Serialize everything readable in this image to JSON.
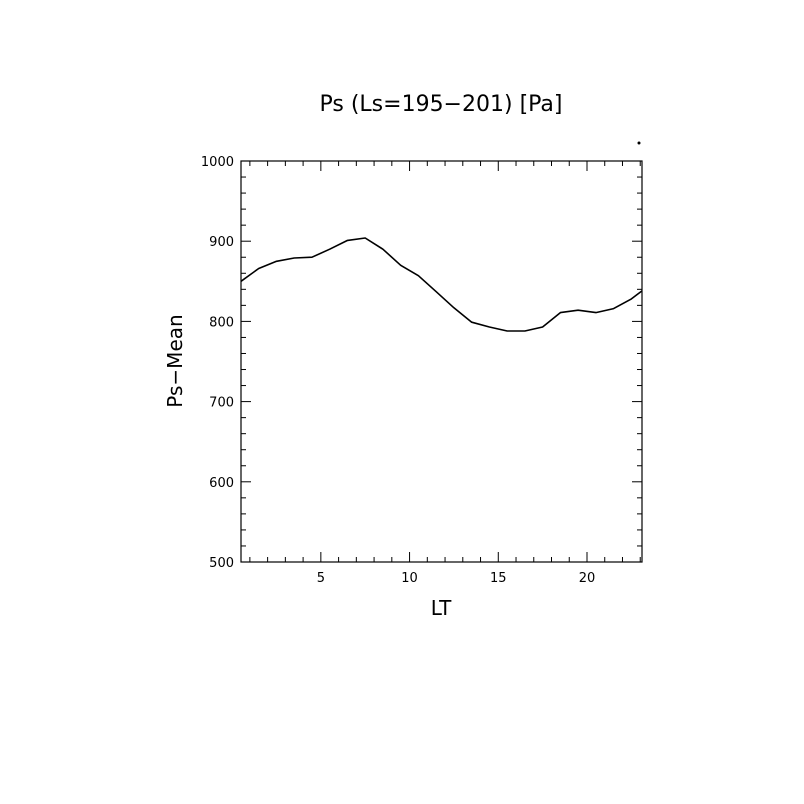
{
  "chart_data": {
    "type": "line",
    "title": "Ps (Ls=195−201) [Pa]",
    "xlabel": "LT",
    "ylabel": "Ps−Mean",
    "xlim": [
      0.5,
      23.1
    ],
    "ylim": [
      500,
      1000
    ],
    "xticks": [
      5,
      10,
      15,
      20
    ],
    "yticks": [
      500,
      600,
      700,
      800,
      900,
      1000
    ],
    "grid": false,
    "legend": "none",
    "series": [
      {
        "color": "#000000",
        "x": [
          0.5,
          1.5,
          2.5,
          3.5,
          4.5,
          5.5,
          6.5,
          7.5,
          8.5,
          9.5,
          10.5,
          11.5,
          12.5,
          13.5,
          14.5,
          15.5,
          16.5,
          17.5,
          18.5,
          19.5,
          20.5,
          21.5,
          22.5,
          23.1
        ],
        "y": [
          850,
          866,
          875,
          879,
          880,
          890,
          901,
          904,
          890,
          870,
          857,
          837,
          817,
          799,
          793,
          788,
          788,
          793,
          811,
          814,
          811,
          816,
          828,
          838
        ]
      }
    ]
  }
}
